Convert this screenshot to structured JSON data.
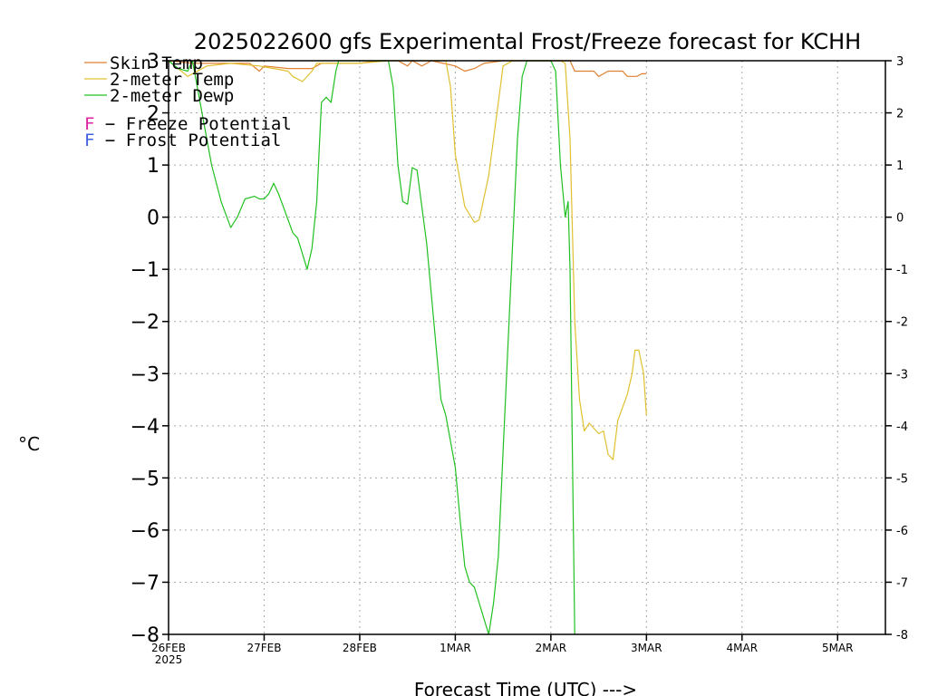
{
  "chart_data": {
    "type": "line",
    "title": "2025022600 gfs Experimental Frost/Freeze forecast for KCHH",
    "xlabel": "Forecast Time (UTC) --->",
    "ylabel": "°C",
    "ylim": [
      -8,
      3
    ],
    "xlim": [
      0,
      7.5
    ],
    "grid": true,
    "y_ticks": [
      "−8",
      "−7",
      "−6",
      "−5",
      "−4",
      "−3",
      "−2",
      "−1",
      "0",
      "1",
      "2",
      "3"
    ],
    "y_ticks_right": [
      "-8",
      "-7",
      "-6",
      "-5",
      "-4",
      "-3",
      "-2",
      "-1",
      "0",
      "1",
      "2",
      "3"
    ],
    "x_ticks": [
      {
        "x": 0,
        "label": "26FEB",
        "sublabel": "2025"
      },
      {
        "x": 1,
        "label": "27FEB"
      },
      {
        "x": 2,
        "label": "28FEB"
      },
      {
        "x": 3,
        "label": "1MAR"
      },
      {
        "x": 4,
        "label": "2MAR"
      },
      {
        "x": 5,
        "label": "3MAR"
      },
      {
        "x": 6,
        "label": "4MAR"
      },
      {
        "x": 7,
        "label": "5MAR"
      }
    ],
    "legend": [
      {
        "label": "Skin Temp",
        "color": "#e08030"
      },
      {
        "label": "2-meter Temp",
        "color": "#e0c030"
      },
      {
        "label": "2-meter Dewp",
        "color": "#20c020"
      }
    ],
    "potential_legend": [
      {
        "marker": "F",
        "text": " − Freeze Potential",
        "color": "#e020a0"
      },
      {
        "marker": "F",
        "text": " − Frost Potential",
        "color": "#4060e0"
      }
    ],
    "series": [
      {
        "name": "Skin Temp",
        "color": "#e08030",
        "points": [
          [
            0,
            3
          ],
          [
            0.25,
            2.95
          ],
          [
            0.6,
            2.95
          ],
          [
            0.85,
            2.95
          ],
          [
            0.95,
            2.8
          ],
          [
            1.0,
            2.9
          ],
          [
            1.25,
            2.85
          ],
          [
            1.5,
            2.85
          ],
          [
            1.6,
            2.95
          ],
          [
            2.0,
            2.95
          ],
          [
            2.2,
            3
          ],
          [
            2.4,
            3
          ],
          [
            2.5,
            2.9
          ],
          [
            2.55,
            3
          ],
          [
            2.65,
            2.9
          ],
          [
            2.75,
            3
          ],
          [
            3.0,
            2.9
          ],
          [
            3.1,
            2.8
          ],
          [
            3.2,
            2.85
          ],
          [
            3.3,
            2.95
          ],
          [
            3.5,
            3
          ],
          [
            3.9,
            3
          ],
          [
            4.05,
            3
          ],
          [
            4.2,
            3
          ],
          [
            4.25,
            2.8
          ],
          [
            4.45,
            2.8
          ],
          [
            4.5,
            2.7
          ],
          [
            4.6,
            2.8
          ],
          [
            4.75,
            2.8
          ],
          [
            4.8,
            2.7
          ],
          [
            4.9,
            2.7
          ],
          [
            4.95,
            2.75
          ],
          [
            5.0,
            2.75
          ]
        ]
      },
      {
        "name": "2-meter Temp",
        "color": "#e0c030",
        "points": [
          [
            0,
            3
          ],
          [
            0.2,
            2.7
          ],
          [
            0.4,
            2.9
          ],
          [
            0.65,
            2.95
          ],
          [
            0.95,
            2.9
          ],
          [
            1.1,
            2.85
          ],
          [
            1.25,
            2.8
          ],
          [
            1.3,
            2.7
          ],
          [
            1.4,
            2.6
          ],
          [
            1.5,
            2.8
          ],
          [
            1.55,
            2.95
          ],
          [
            2.0,
            2.95
          ],
          [
            2.3,
            3
          ],
          [
            2.9,
            3
          ],
          [
            2.95,
            2.5
          ],
          [
            3.0,
            1.2
          ],
          [
            3.1,
            0.2
          ],
          [
            3.2,
            -0.1
          ],
          [
            3.25,
            -0.05
          ],
          [
            3.35,
            0.8
          ],
          [
            3.45,
            2.2
          ],
          [
            3.5,
            2.9
          ],
          [
            3.6,
            3
          ],
          [
            4.1,
            3
          ],
          [
            4.15,
            2.95
          ],
          [
            4.2,
            1.5
          ],
          [
            4.25,
            -2.0
          ],
          [
            4.3,
            -3.5
          ],
          [
            4.35,
            -4.1
          ],
          [
            4.4,
            -3.95
          ],
          [
            4.5,
            -4.15
          ],
          [
            4.55,
            -4.1
          ],
          [
            4.6,
            -4.55
          ],
          [
            4.65,
            -4.65
          ],
          [
            4.7,
            -3.9
          ],
          [
            4.8,
            -3.4
          ],
          [
            4.85,
            -3.0
          ],
          [
            4.88,
            -2.55
          ],
          [
            4.92,
            -2.55
          ],
          [
            4.97,
            -3.0
          ],
          [
            5.0,
            -3.8
          ]
        ]
      },
      {
        "name": "2-meter Dewp",
        "color": "#20c020",
        "points": [
          [
            0,
            3
          ],
          [
            0.1,
            2.85
          ],
          [
            0.2,
            2.8
          ],
          [
            0.25,
            3
          ],
          [
            0.35,
            2.0
          ],
          [
            0.45,
            1.0
          ],
          [
            0.55,
            0.3
          ],
          [
            0.65,
            -0.2
          ],
          [
            0.72,
            0.0
          ],
          [
            0.8,
            0.35
          ],
          [
            0.9,
            0.4
          ],
          [
            0.95,
            0.35
          ],
          [
            1.0,
            0.35
          ],
          [
            1.05,
            0.45
          ],
          [
            1.1,
            0.65
          ],
          [
            1.15,
            0.45
          ],
          [
            1.2,
            0.2
          ],
          [
            1.3,
            -0.3
          ],
          [
            1.35,
            -0.4
          ],
          [
            1.4,
            -0.7
          ],
          [
            1.45,
            -1.0
          ],
          [
            1.5,
            -0.6
          ],
          [
            1.55,
            0.3
          ],
          [
            1.6,
            2.2
          ],
          [
            1.65,
            2.3
          ],
          [
            1.7,
            2.2
          ],
          [
            1.75,
            2.8
          ],
          [
            1.78,
            3
          ],
          [
            2.3,
            3
          ],
          [
            2.35,
            2.5
          ],
          [
            2.4,
            1.0
          ],
          [
            2.45,
            0.3
          ],
          [
            2.5,
            0.25
          ],
          [
            2.55,
            0.95
          ],
          [
            2.6,
            0.9
          ],
          [
            2.7,
            -0.5
          ],
          [
            2.8,
            -2.5
          ],
          [
            2.85,
            -3.5
          ],
          [
            2.9,
            -3.8
          ],
          [
            3.0,
            -4.8
          ],
          [
            3.05,
            -5.8
          ],
          [
            3.1,
            -6.7
          ],
          [
            3.15,
            -7.0
          ],
          [
            3.2,
            -7.1
          ],
          [
            3.25,
            -7.4
          ],
          [
            3.3,
            -7.7
          ],
          [
            3.35,
            -8.0
          ],
          [
            3.4,
            -7.4
          ],
          [
            3.45,
            -6.5
          ],
          [
            3.5,
            -4.5
          ],
          [
            3.55,
            -2.5
          ],
          [
            3.6,
            -0.5
          ],
          [
            3.65,
            1.5
          ],
          [
            3.7,
            2.7
          ],
          [
            3.75,
            3
          ],
          [
            4.0,
            3
          ],
          [
            4.05,
            2.8
          ],
          [
            4.1,
            1.0
          ],
          [
            4.15,
            0.0
          ],
          [
            4.18,
            0.3
          ],
          [
            4.2,
            -1.0
          ],
          [
            4.25,
            -8.0
          ]
        ]
      }
    ]
  }
}
